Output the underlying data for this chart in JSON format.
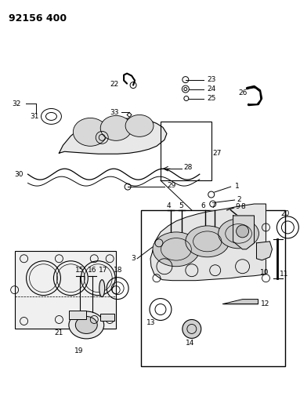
{
  "title": "92156 400",
  "bg_color": "#ffffff",
  "line_color": "#000000",
  "fig_width": 3.83,
  "fig_height": 5.33,
  "dpi": 100
}
